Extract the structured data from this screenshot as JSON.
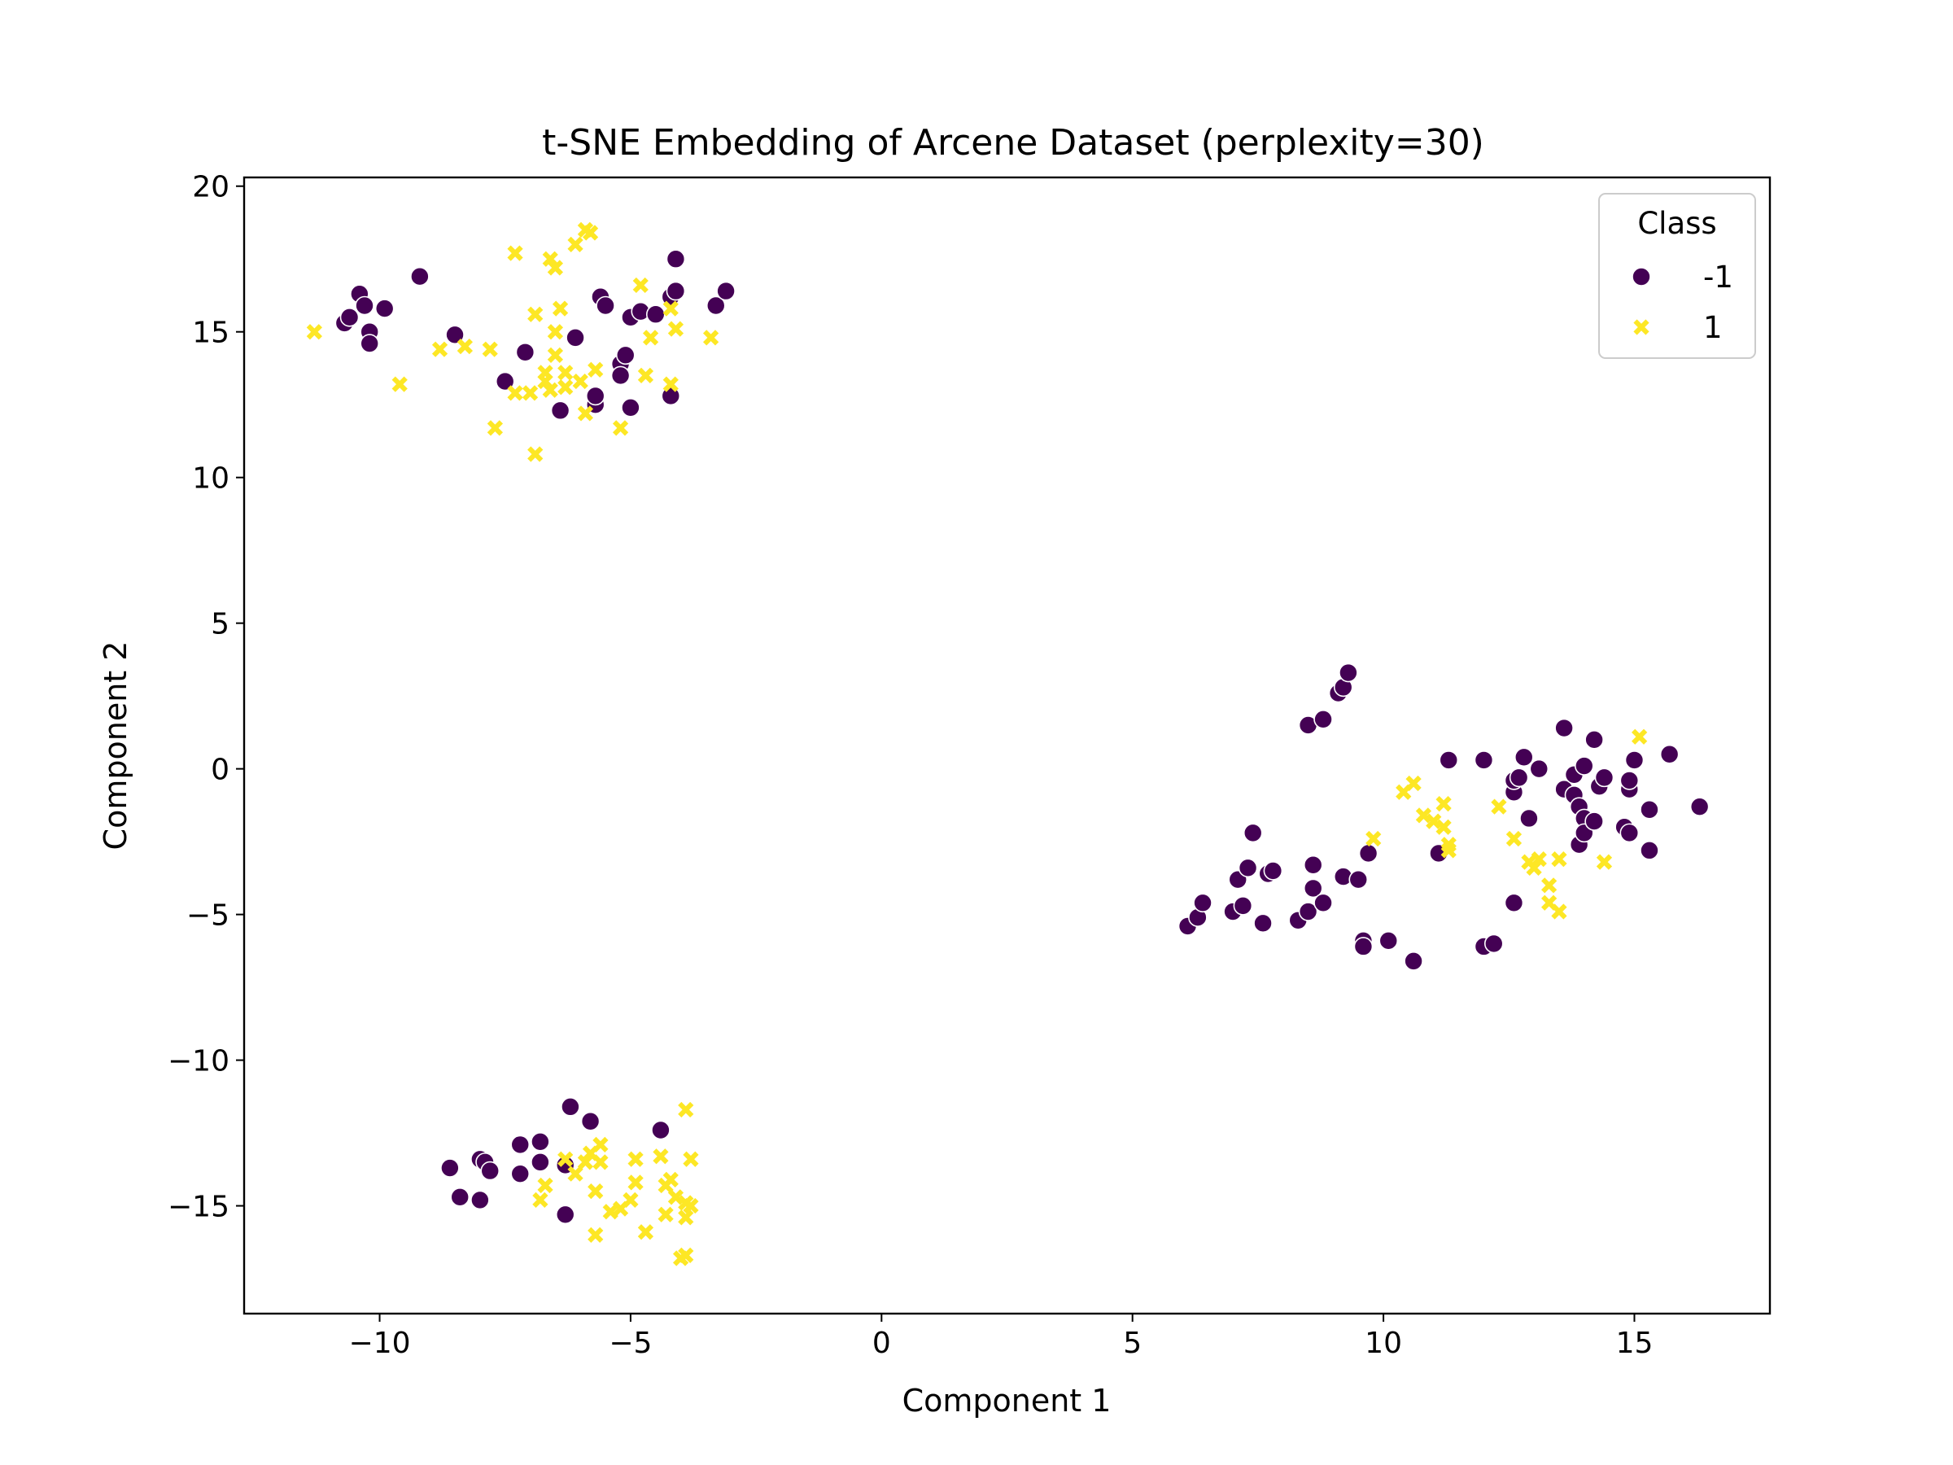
{
  "chart_data": {
    "type": "scatter",
    "title": "t-SNE Embedding of Arcene Dataset (perplexity=30)",
    "xlabel": "Component 1",
    "ylabel": "Component 2",
    "xlim": [
      -12.7,
      17.7
    ],
    "ylim": [
      -18.7,
      20.3
    ],
    "xticks": [
      -10,
      -5,
      0,
      5,
      10,
      15
    ],
    "yticks": [
      -15,
      -10,
      -5,
      0,
      5,
      10,
      15,
      20
    ],
    "xtick_labels": [
      "−10",
      "−5",
      "0",
      "5",
      "10",
      "15"
    ],
    "ytick_labels": [
      "−15",
      "−10",
      "−5",
      "0",
      "5",
      "10",
      "15",
      "20"
    ],
    "grid": false,
    "legend": {
      "title": "Class",
      "placement": "top-right"
    },
    "series": [
      {
        "name": "-1",
        "marker": "circle",
        "color": "#440154",
        "points": [
          [
            -10.7,
            15.3
          ],
          [
            -10.6,
            15.5
          ],
          [
            -10.4,
            16.3
          ],
          [
            -10.3,
            15.9
          ],
          [
            -10.2,
            15.0
          ],
          [
            -10.2,
            14.6
          ],
          [
            -9.9,
            15.8
          ],
          [
            -9.2,
            16.9
          ],
          [
            -8.5,
            14.9
          ],
          [
            -7.5,
            13.3
          ],
          [
            -7.1,
            14.3
          ],
          [
            -6.4,
            12.3
          ],
          [
            -6.1,
            14.8
          ],
          [
            -5.7,
            12.5
          ],
          [
            -5.7,
            12.8
          ],
          [
            -5.6,
            16.2
          ],
          [
            -5.5,
            15.9
          ],
          [
            -5.2,
            13.9
          ],
          [
            -5.2,
            13.5
          ],
          [
            -5.1,
            14.2
          ],
          [
            -5.0,
            12.4
          ],
          [
            -5.0,
            15.5
          ],
          [
            -4.8,
            15.7
          ],
          [
            -4.5,
            15.6
          ],
          [
            -4.2,
            16.2
          ],
          [
            -4.1,
            17.5
          ],
          [
            -4.1,
            16.4
          ],
          [
            -4.2,
            12.8
          ],
          [
            -3.3,
            15.9
          ],
          [
            -3.1,
            16.4
          ],
          [
            -8.6,
            -13.7
          ],
          [
            -8.4,
            -14.7
          ],
          [
            -8.0,
            -14.8
          ],
          [
            -8.0,
            -13.4
          ],
          [
            -7.9,
            -13.5
          ],
          [
            -7.8,
            -13.8
          ],
          [
            -7.2,
            -12.9
          ],
          [
            -7.2,
            -13.9
          ],
          [
            -6.8,
            -12.8
          ],
          [
            -6.8,
            -13.5
          ],
          [
            -6.3,
            -13.6
          ],
          [
            -6.3,
            -15.3
          ],
          [
            -6.2,
            -11.6
          ],
          [
            -5.8,
            -12.1
          ],
          [
            -4.4,
            -12.4
          ],
          [
            6.1,
            -5.4
          ],
          [
            6.3,
            -5.1
          ],
          [
            6.4,
            -4.6
          ],
          [
            7.0,
            -4.9
          ],
          [
            7.1,
            -3.8
          ],
          [
            7.2,
            -4.7
          ],
          [
            7.3,
            -3.4
          ],
          [
            7.4,
            -2.2
          ],
          [
            7.6,
            -5.3
          ],
          [
            7.7,
            -3.6
          ],
          [
            7.8,
            -3.5
          ],
          [
            8.3,
            -5.2
          ],
          [
            8.5,
            -4.9
          ],
          [
            8.5,
            1.5
          ],
          [
            8.6,
            -3.3
          ],
          [
            8.6,
            -4.1
          ],
          [
            8.8,
            1.7
          ],
          [
            8.8,
            -4.6
          ],
          [
            9.1,
            2.6
          ],
          [
            9.2,
            2.8
          ],
          [
            9.2,
            -3.7
          ],
          [
            9.3,
            3.3
          ],
          [
            9.5,
            -3.8
          ],
          [
            9.6,
            -5.9
          ],
          [
            9.6,
            -6.1
          ],
          [
            9.7,
            -2.9
          ],
          [
            10.1,
            -5.9
          ],
          [
            10.6,
            -6.6
          ],
          [
            11.1,
            -2.9
          ],
          [
            11.3,
            0.3
          ],
          [
            12.0,
            0.3
          ],
          [
            12.0,
            -6.1
          ],
          [
            12.2,
            -6.0
          ],
          [
            12.6,
            -4.6
          ],
          [
            12.6,
            -0.8
          ],
          [
            12.6,
            -0.4
          ],
          [
            12.7,
            -0.3
          ],
          [
            12.8,
            0.4
          ],
          [
            12.9,
            -1.7
          ],
          [
            13.1,
            0.0
          ],
          [
            13.6,
            -0.7
          ],
          [
            13.6,
            1.4
          ],
          [
            13.8,
            -0.9
          ],
          [
            13.8,
            -0.2
          ],
          [
            13.9,
            -2.6
          ],
          [
            13.9,
            -1.3
          ],
          [
            14.0,
            0.1
          ],
          [
            14.0,
            -1.7
          ],
          [
            14.0,
            -2.2
          ],
          [
            14.2,
            1.0
          ],
          [
            14.2,
            -1.8
          ],
          [
            14.3,
            -0.6
          ],
          [
            14.4,
            -0.3
          ],
          [
            14.8,
            -2.0
          ],
          [
            14.9,
            -2.2
          ],
          [
            14.9,
            -0.7
          ],
          [
            14.9,
            -0.4
          ],
          [
            15.0,
            0.3
          ],
          [
            15.3,
            -1.4
          ],
          [
            15.3,
            -2.8
          ],
          [
            15.7,
            0.5
          ],
          [
            16.3,
            -1.3
          ]
        ]
      },
      {
        "name": "1",
        "marker": "x",
        "color": "#fde725",
        "points": [
          [
            -11.3,
            15.0
          ],
          [
            -9.6,
            13.2
          ],
          [
            -8.8,
            14.4
          ],
          [
            -8.3,
            14.5
          ],
          [
            -7.8,
            14.4
          ],
          [
            -7.7,
            11.7
          ],
          [
            -7.3,
            17.7
          ],
          [
            -7.3,
            12.9
          ],
          [
            -7.0,
            12.9
          ],
          [
            -6.9,
            15.6
          ],
          [
            -6.9,
            10.8
          ],
          [
            -6.7,
            13.6
          ],
          [
            -6.7,
            13.3
          ],
          [
            -6.6,
            17.5
          ],
          [
            -6.6,
            13.0
          ],
          [
            -6.5,
            17.2
          ],
          [
            -6.5,
            14.2
          ],
          [
            -6.5,
            15.0
          ],
          [
            -6.4,
            15.8
          ],
          [
            -6.3,
            13.1
          ],
          [
            -6.3,
            13.6
          ],
          [
            -6.1,
            18.0
          ],
          [
            -6.0,
            13.3
          ],
          [
            -5.9,
            12.2
          ],
          [
            -5.9,
            18.5
          ],
          [
            -5.8,
            18.4
          ],
          [
            -5.7,
            13.7
          ],
          [
            -5.2,
            11.7
          ],
          [
            -4.8,
            16.6
          ],
          [
            -4.7,
            13.5
          ],
          [
            -4.6,
            14.8
          ],
          [
            -4.2,
            13.2
          ],
          [
            -4.2,
            15.8
          ],
          [
            -4.1,
            15.1
          ],
          [
            -3.4,
            14.8
          ],
          [
            -6.8,
            -14.8
          ],
          [
            -6.7,
            -14.3
          ],
          [
            -6.3,
            -13.4
          ],
          [
            -6.1,
            -13.9
          ],
          [
            -5.9,
            -13.5
          ],
          [
            -5.8,
            -13.2
          ],
          [
            -5.6,
            -13.5
          ],
          [
            -5.6,
            -12.9
          ],
          [
            -5.7,
            -14.5
          ],
          [
            -5.7,
            -16.0
          ],
          [
            -5.4,
            -15.2
          ],
          [
            -5.2,
            -15.1
          ],
          [
            -5.0,
            -14.8
          ],
          [
            -4.9,
            -14.2
          ],
          [
            -4.9,
            -13.4
          ],
          [
            -4.7,
            -15.9
          ],
          [
            -4.4,
            -13.3
          ],
          [
            -4.3,
            -15.3
          ],
          [
            -4.2,
            -14.1
          ],
          [
            -4.1,
            -14.7
          ],
          [
            -4.0,
            -16.8
          ],
          [
            -3.9,
            -11.7
          ],
          [
            -3.9,
            -16.7
          ],
          [
            -3.8,
            -13.4
          ],
          [
            -3.8,
            -15.0
          ],
          [
            -3.9,
            -15.4
          ],
          [
            -3.9,
            -14.9
          ],
          [
            -4.3,
            -14.3
          ],
          [
            9.8,
            -2.4
          ],
          [
            10.4,
            -0.8
          ],
          [
            10.6,
            -0.5
          ],
          [
            10.8,
            -1.6
          ],
          [
            11.0,
            -1.8
          ],
          [
            11.2,
            -2.0
          ],
          [
            11.2,
            -1.2
          ],
          [
            11.3,
            -2.6
          ],
          [
            11.3,
            -2.8
          ],
          [
            12.3,
            -1.3
          ],
          [
            12.6,
            -2.4
          ],
          [
            12.9,
            -3.2
          ],
          [
            13.0,
            -3.4
          ],
          [
            13.1,
            -3.1
          ],
          [
            13.3,
            -4.0
          ],
          [
            13.3,
            -4.6
          ],
          [
            13.5,
            -4.9
          ],
          [
            13.5,
            -3.1
          ],
          [
            14.4,
            -3.2
          ],
          [
            15.1,
            1.1
          ]
        ]
      }
    ]
  }
}
